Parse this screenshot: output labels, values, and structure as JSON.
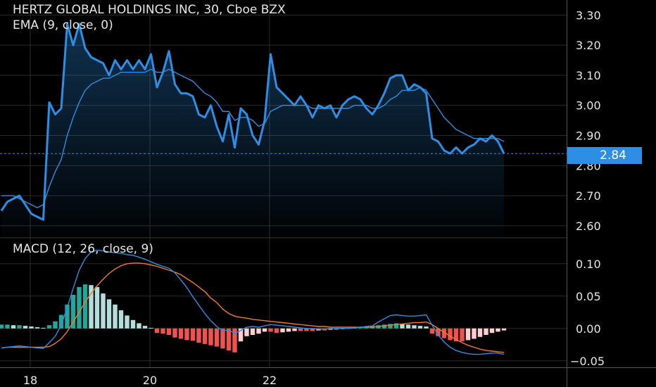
{
  "header": {
    "title": "HERTZ GLOBAL HOLDINGS INC, 30, Cboe BZX",
    "ema_label": "EMA (9, close, 0)",
    "macd_label": "MACD (12, 26, close, 9)"
  },
  "last_price": "2.84",
  "colors": {
    "background": "#000000",
    "grid": "#2a2a2a",
    "price_line": "#2d8ee3",
    "ema_line": "#2d8ee3",
    "macd_line": "#2d8ee3",
    "signal_line": "#f07b2b",
    "hist_pos_strong": "#26a69a",
    "hist_pos_weak": "#b2dfdb",
    "hist_neg_strong": "#ef5350",
    "hist_neg_weak": "#ffcdd2",
    "axis_text": "#e6e6e6"
  },
  "chart_data": [
    {
      "type": "line",
      "title": "HERTZ GLOBAL HOLDINGS INC, 30, Cboe BZX",
      "ylim": [
        2.56,
        3.35
      ],
      "y_ticks": [
        "3.30",
        "3.20",
        "3.10",
        "3.00",
        "2.90",
        "2.80",
        "2.70",
        "2.60"
      ],
      "y_tick_values": [
        3.3,
        3.2,
        3.1,
        3.0,
        2.9,
        2.8,
        2.7,
        2.6
      ],
      "x_ticks": [
        "18",
        "20",
        "22"
      ],
      "x_tick_bar_index": [
        5,
        25,
        45
      ],
      "last_price": 2.84,
      "series": [
        {
          "name": "",
          "values": [
            2.65,
            2.68,
            2.69,
            2.7,
            2.67,
            2.64,
            2.63,
            2.62,
            3.01,
            2.97,
            2.99,
            3.27,
            3.2,
            3.27,
            3.19,
            3.16,
            3.15,
            3.14,
            3.1,
            3.15,
            3.12,
            3.15,
            3.12,
            3.15,
            3.12,
            3.17,
            3.06,
            3.11,
            3.18,
            3.07,
            3.04,
            3.04,
            3.03,
            2.97,
            2.96,
            3.0,
            2.93,
            2.88,
            2.97,
            2.86,
            2.99,
            2.97,
            2.9,
            2.87,
            2.95,
            3.17,
            3.06,
            3.04,
            3.02,
            3.0,
            3.03,
            3.0,
            2.96,
            3.0,
            2.99,
            3.0,
            2.96,
            3.0,
            3.02,
            3.03,
            3.02,
            2.99,
            2.97,
            3.0,
            3.04,
            3.09,
            3.1,
            3.1,
            3.05,
            3.07,
            3.06,
            3.04,
            2.89,
            2.88,
            2.85,
            2.84,
            2.86,
            2.84,
            2.86,
            2.87,
            2.89,
            2.88,
            2.9,
            2.88,
            2.84
          ]
        },
        {
          "name": "EMA",
          "values": [
            2.7,
            2.7,
            2.7,
            2.69,
            2.68,
            2.67,
            2.66,
            2.67,
            2.73,
            2.78,
            2.82,
            2.9,
            2.96,
            3.01,
            3.05,
            3.07,
            3.08,
            3.09,
            3.09,
            3.1,
            3.11,
            3.11,
            3.11,
            3.11,
            3.11,
            3.12,
            3.11,
            3.11,
            3.12,
            3.11,
            3.1,
            3.09,
            3.08,
            3.06,
            3.04,
            3.03,
            3.01,
            2.98,
            2.98,
            2.95,
            2.96,
            2.96,
            2.95,
            2.93,
            2.94,
            2.98,
            2.99,
            3.0,
            3.0,
            3.0,
            3.0,
            3.0,
            2.99,
            2.99,
            2.99,
            2.99,
            2.99,
            2.99,
            2.99,
            3.0,
            3.0,
            3.0,
            2.99,
            2.99,
            3.0,
            3.02,
            3.03,
            3.05,
            3.05,
            3.05,
            3.06,
            3.05,
            3.02,
            2.99,
            2.96,
            2.94,
            2.92,
            2.91,
            2.9,
            2.89,
            2.89,
            2.89,
            2.89,
            2.89,
            2.88
          ]
        }
      ]
    },
    {
      "type": "bar",
      "title": "MACD (12, 26, close, 9)",
      "ylim": [
        -0.06,
        0.14
      ],
      "y_ticks": [
        "0.10",
        "0.05",
        "0.00",
        "−0.05"
      ],
      "y_tick_values": [
        0.1,
        0.05,
        0.0,
        -0.05
      ],
      "series": [
        {
          "name": "MACD",
          "values": [
            -0.03,
            -0.029,
            -0.028,
            -0.027,
            -0.028,
            -0.029,
            -0.03,
            -0.031,
            -0.022,
            -0.012,
            0.005,
            0.032,
            0.062,
            0.09,
            0.108,
            0.118,
            0.121,
            0.12,
            0.118,
            0.117,
            0.116,
            0.114,
            0.113,
            0.11,
            0.107,
            0.103,
            0.099,
            0.096,
            0.093,
            0.086,
            0.075,
            0.063,
            0.049,
            0.036,
            0.023,
            0.012,
            0.003,
            -0.004,
            -0.002,
            -0.008,
            -0.003,
            0.002,
            0.003,
            0.002,
            0.004,
            0.006,
            0.005,
            0.004,
            0.003,
            0.002,
            0.001,
            0.0,
            0.0,
            -0.001,
            -0.001,
            0.0,
            0.0,
            0.0,
            0.0,
            0.001,
            0.002,
            0.003,
            0.004,
            0.01,
            0.015,
            0.02,
            0.021,
            0.02,
            0.019,
            0.019,
            0.02,
            0.021,
            0.005,
            -0.01,
            -0.021,
            -0.029,
            -0.034,
            -0.037,
            -0.039,
            -0.04,
            -0.04,
            -0.039,
            -0.038,
            -0.038,
            -0.04
          ]
        },
        {
          "name": "Signal",
          "values": [
            -0.03,
            -0.029,
            -0.029,
            -0.029,
            -0.029,
            -0.029,
            -0.029,
            -0.029,
            -0.028,
            -0.023,
            -0.016,
            -0.005,
            0.01,
            0.025,
            0.041,
            0.054,
            0.066,
            0.076,
            0.085,
            0.092,
            0.097,
            0.1,
            0.101,
            0.101,
            0.1,
            0.098,
            0.096,
            0.093,
            0.09,
            0.087,
            0.083,
            0.077,
            0.071,
            0.064,
            0.057,
            0.047,
            0.04,
            0.03,
            0.023,
            0.019,
            0.017,
            0.016,
            0.014,
            0.013,
            0.012,
            0.011,
            0.01,
            0.009,
            0.008,
            0.007,
            0.006,
            0.005,
            0.004,
            0.003,
            0.003,
            0.002,
            0.002,
            0.002,
            0.002,
            0.002,
            0.002,
            0.002,
            0.002,
            0.003,
            0.004,
            0.005,
            0.006,
            0.007,
            0.008,
            0.009,
            0.009,
            0.01,
            0.006,
            0.0,
            -0.006,
            -0.012,
            -0.017,
            -0.022,
            -0.026,
            -0.029,
            -0.032,
            -0.034,
            -0.035,
            -0.036,
            -0.037
          ]
        },
        {
          "name": "Histogram",
          "values": [
            0.006,
            0.006,
            0.005,
            0.005,
            0.004,
            0.003,
            0.002,
            0.001,
            0.005,
            0.011,
            0.021,
            0.037,
            0.052,
            0.064,
            0.068,
            0.067,
            0.064,
            0.054,
            0.045,
            0.037,
            0.028,
            0.02,
            0.013,
            0.008,
            0.004,
            0.001,
            -0.007,
            -0.008,
            -0.01,
            -0.014,
            -0.016,
            -0.018,
            -0.019,
            -0.022,
            -0.024,
            -0.026,
            -0.028,
            -0.031,
            -0.034,
            -0.037,
            -0.02,
            -0.012,
            -0.01,
            -0.008,
            -0.005,
            -0.005,
            -0.007,
            -0.006,
            -0.005,
            -0.004,
            -0.004,
            -0.004,
            -0.004,
            -0.003,
            -0.003,
            -0.002,
            -0.002,
            -0.001,
            0.001,
            0.001,
            0.002,
            0.003,
            0.004,
            0.005,
            0.006,
            0.007,
            0.008,
            0.007,
            0.006,
            0.005,
            0.004,
            0.003,
            -0.008,
            -0.012,
            -0.015,
            -0.018,
            -0.02,
            -0.02,
            -0.018,
            -0.016,
            -0.013,
            -0.01,
            -0.007,
            -0.005,
            -0.003
          ]
        }
      ]
    }
  ]
}
